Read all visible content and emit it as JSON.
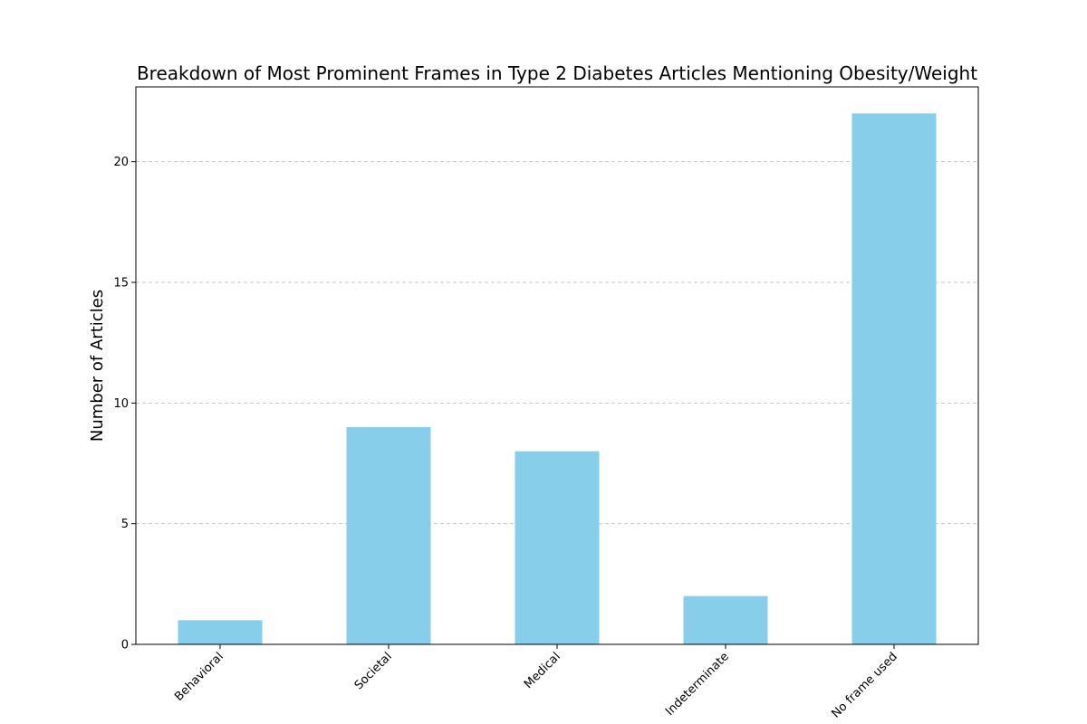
{
  "chart_data": {
    "type": "bar",
    "title": "Breakdown of Most Prominent Frames in Type 2 Diabetes Articles Mentioning Obesity/Weight",
    "xlabel": "",
    "ylabel": "Number of Articles",
    "categories": [
      "Behavioral",
      "Societal",
      "Medical",
      "Indeterminate",
      "No frame used"
    ],
    "values": [
      1,
      9,
      8,
      2,
      22
    ],
    "ylim": [
      0,
      23.1
    ],
    "yticks": [
      0,
      5,
      10,
      15,
      20
    ],
    "grid": "y-dashed",
    "bar_color": "#87CEEB",
    "grid_color": "#c8c8c8",
    "xtick_rotation_deg": 45
  }
}
